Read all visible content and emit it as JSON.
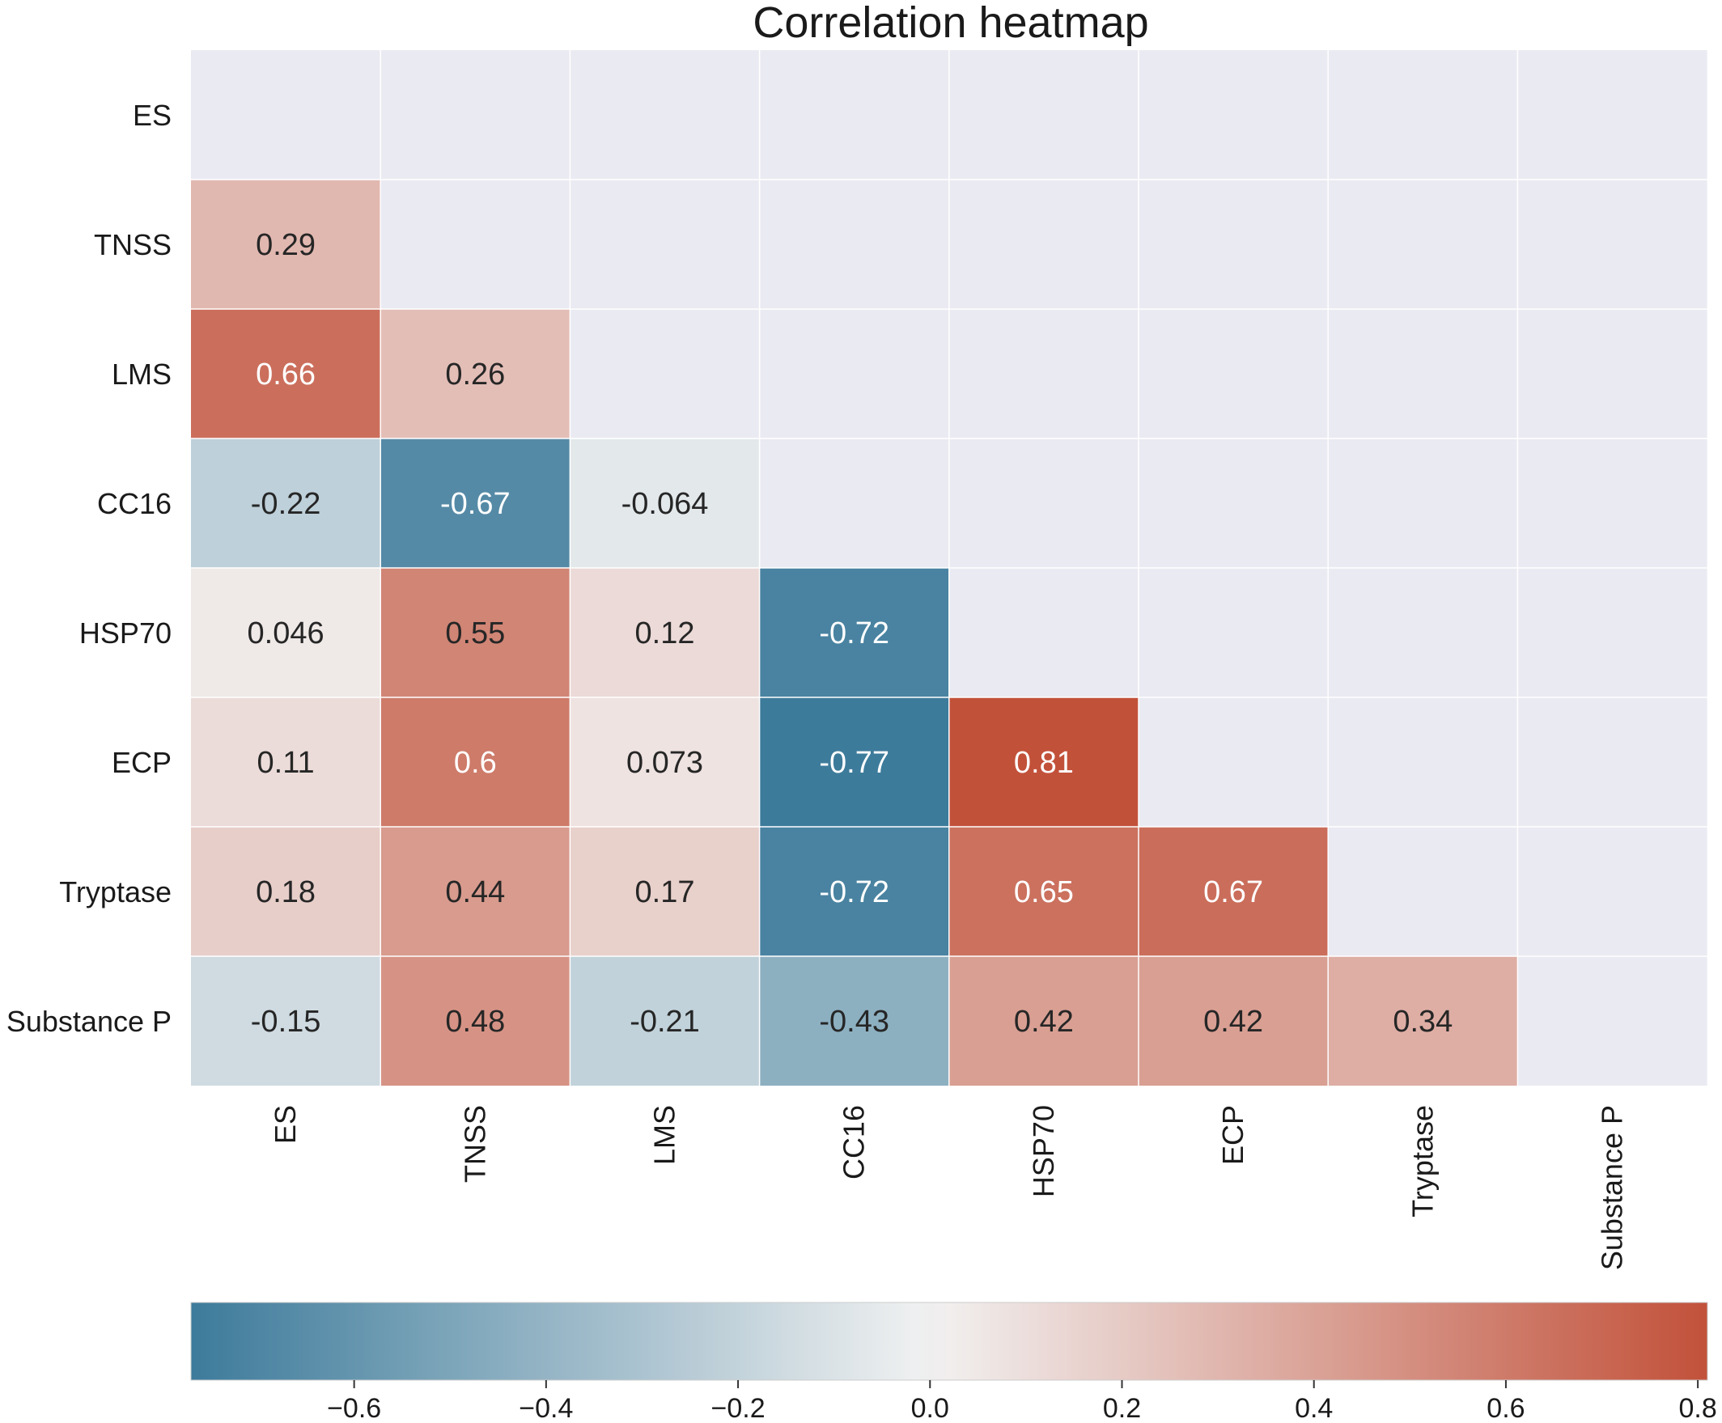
{
  "chart_data": {
    "type": "heatmap",
    "title": "Correlation heatmap",
    "variables": [
      "ES",
      "TNSS",
      "LMS",
      "CC16",
      "HSP70",
      "ECP",
      "Tryptase",
      "Substance P"
    ],
    "mask": "upper-triangle-and-diagonal",
    "matrix": [
      [
        null,
        null,
        null,
        null,
        null,
        null,
        null,
        null
      ],
      [
        0.29,
        null,
        null,
        null,
        null,
        null,
        null,
        null
      ],
      [
        0.66,
        0.26,
        null,
        null,
        null,
        null,
        null,
        null
      ],
      [
        -0.22,
        -0.67,
        -0.064,
        null,
        null,
        null,
        null,
        null
      ],
      [
        0.046,
        0.55,
        0.12,
        -0.72,
        null,
        null,
        null,
        null
      ],
      [
        0.11,
        0.6,
        0.073,
        -0.77,
        0.81,
        null,
        null,
        null
      ],
      [
        0.18,
        0.44,
        0.17,
        -0.72,
        0.65,
        0.67,
        null,
        null
      ],
      [
        -0.15,
        0.48,
        -0.21,
        -0.43,
        0.42,
        0.42,
        0.34,
        null
      ]
    ],
    "colorbar": {
      "vmin": -0.77,
      "vmax": 0.81,
      "center": 0,
      "ticks": [
        -0.6,
        -0.4,
        -0.2,
        0.0,
        0.2,
        0.4,
        0.6,
        0.8
      ],
      "tick_labels": [
        "−0.6",
        "−0.4",
        "−0.2",
        "0.0",
        "0.2",
        "0.4",
        "0.6",
        "0.8"
      ],
      "orientation": "horizontal",
      "position": "bottom"
    },
    "colors": {
      "negative": "#3d7b9b",
      "center": "#f2f2f2",
      "positive": "#c2513a",
      "masked_background": "#eaeaf2",
      "grid": "#ffffff"
    }
  }
}
